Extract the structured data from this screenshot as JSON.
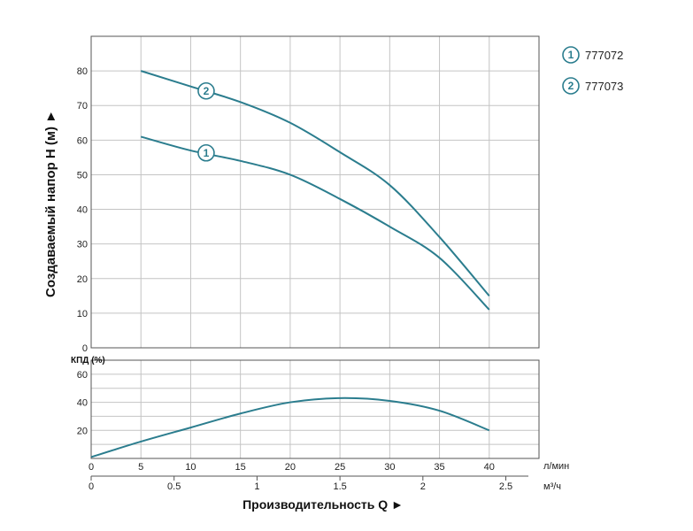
{
  "chart_data": [
    {
      "type": "line",
      "ylabel": "Создаваемый напор H (м) ►",
      "xlim": [
        0,
        45
      ],
      "ylim": [
        0,
        90
      ],
      "xticks": [
        0,
        5,
        10,
        15,
        20,
        25,
        30,
        35,
        40
      ],
      "yticks": [
        0,
        10,
        20,
        30,
        40,
        50,
        60,
        70,
        80
      ],
      "grid": true,
      "series": [
        {
          "name": "777072",
          "marker": "1",
          "x": [
            5,
            10,
            15,
            20,
            25,
            30,
            35,
            40
          ],
          "y": [
            61,
            57,
            54,
            50,
            43,
            35,
            26,
            11
          ]
        },
        {
          "name": "777073",
          "marker": "2",
          "x": [
            5,
            10,
            15,
            20,
            25,
            30,
            35,
            40
          ],
          "y": [
            80,
            75.5,
            71,
            65,
            56.5,
            47,
            32,
            15
          ]
        }
      ],
      "legend": {
        "placement": "right-top",
        "items": [
          {
            "marker": "1",
            "label": "777072"
          },
          {
            "marker": "2",
            "label": "777073"
          }
        ]
      }
    },
    {
      "type": "line",
      "ylabel": "КПД (%)",
      "xlabel": "Производительность Q ►",
      "xlim": [
        0,
        45
      ],
      "ylim": [
        0,
        70
      ],
      "yticks": [
        20,
        40,
        60
      ],
      "xticks": [
        0,
        5,
        10,
        15,
        20,
        25,
        30,
        35,
        40
      ],
      "x_unit": "л/мин",
      "x2_unit": "м³/ч",
      "x2_ticks": [
        {
          "label": "0",
          "value": 0
        },
        {
          "label": "0.5",
          "value": 0.5
        },
        {
          "label": "1",
          "value": 1
        },
        {
          "label": "1.5",
          "value": 1.5
        },
        {
          "label": "2",
          "value": 2
        },
        {
          "label": "2.5",
          "value": 2.5
        }
      ],
      "grid": true,
      "series": [
        {
          "x": [
            0,
            5,
            10,
            15,
            20,
            25,
            30,
            35,
            40
          ],
          "y": [
            1,
            12,
            22,
            32,
            40,
            43,
            41,
            34,
            20
          ]
        }
      ]
    }
  ]
}
